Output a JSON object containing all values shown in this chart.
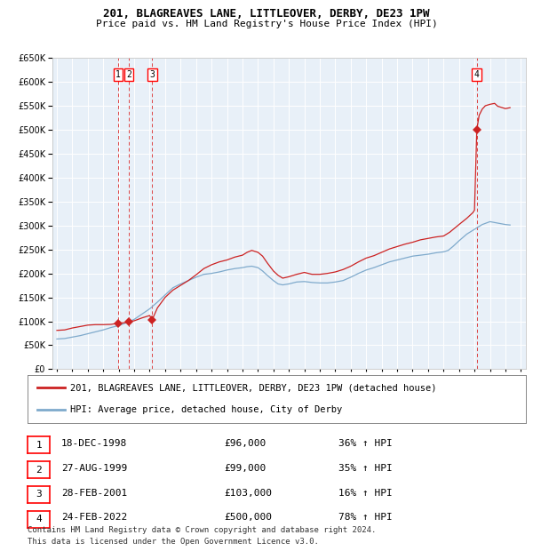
{
  "title1": "201, BLAGREAVES LANE, LITTLEOVER, DERBY, DE23 1PW",
  "title2": "Price paid vs. HM Land Registry's House Price Index (HPI)",
  "legend1": "201, BLAGREAVES LANE, LITTLEOVER, DERBY, DE23 1PW (detached house)",
  "legend2": "HPI: Average price, detached house, City of Derby",
  "footer1": "Contains HM Land Registry data © Crown copyright and database right 2024.",
  "footer2": "This data is licensed under the Open Government Licence v3.0.",
  "hpi_color": "#7faacc",
  "price_color": "#cc2222",
  "plot_bg": "#e8f0f8",
  "grid_color": "#ffffff",
  "dashed_color": "#dd4444",
  "ylim": [
    0,
    650000
  ],
  "yticks": [
    0,
    50000,
    100000,
    150000,
    200000,
    250000,
    300000,
    350000,
    400000,
    450000,
    500000,
    550000,
    600000,
    650000
  ],
  "xlim_start": 1994.7,
  "xlim_end": 2025.3,
  "sales": [
    {
      "num": 1,
      "date_label": "18-DEC-1998",
      "price": 96000,
      "pct": "36%",
      "x_year": 1998.96
    },
    {
      "num": 2,
      "date_label": "27-AUG-1999",
      "price": 99000,
      "pct": "35%",
      "x_year": 1999.65
    },
    {
      "num": 3,
      "date_label": "28-FEB-2001",
      "price": 103000,
      "pct": "16%",
      "x_year": 2001.16
    },
    {
      "num": 4,
      "date_label": "24-FEB-2022",
      "price": 500000,
      "pct": "78%",
      "x_year": 2022.15
    }
  ]
}
